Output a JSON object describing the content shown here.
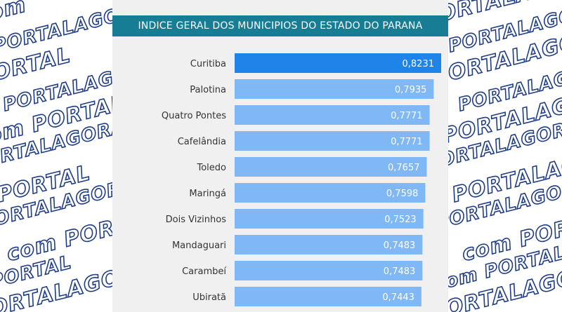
{
  "watermark": {
    "left_lines": [
      ".com",
      "PORTALAGORA.com",
      "PORTAL",
      "PORTALAGORA.com",
      "om PORTAL",
      "PORTALAGORA",
      "PORTAL",
      "PORTALAGORA",
      "com PORTAL",
      "PORTAL",
      "PORTALAGORA"
    ],
    "right_lines": [
      "PORTALAGORA.com",
      "PORTALAGOR",
      "PORTALAGORA.com",
      "PORTALAGORA",
      "PORTALAGORA",
      "PORTALAGORA",
      "PORTALAGORA.com",
      "PORTALAGORA",
      "com PORTALAGORA",
      "om PORTALAGOR",
      "PORTALAGORA"
    ],
    "stroke_color": "#1f3d86"
  },
  "chart_data": {
    "type": "bar",
    "orientation": "horizontal",
    "title": "INDICE GERAL DOS MUNICIPIOS DO ESTADO DO PARANA",
    "categories": [
      "Curitiba",
      "Palotina",
      "Quatro Pontes",
      "Cafelândia",
      "Toledo",
      "Maringá",
      "Dois Vizinhos",
      "Mandaguari",
      "Carambeí",
      "Ubiratã"
    ],
    "values": [
      0.8231,
      0.7935,
      0.7771,
      0.7771,
      0.7657,
      0.7598,
      0.7523,
      0.7483,
      0.7483,
      0.7443
    ],
    "value_labels": [
      "0,8231",
      "0,7935",
      "0,7771",
      "0,7771",
      "0,7657",
      "0,7598",
      "0,7523",
      "0,7483",
      "0,7483",
      "0,7443"
    ],
    "xlim": [
      0,
      0.8231
    ],
    "grid": false,
    "highlight_index": 0,
    "colors": {
      "highlight": "#1f84e8",
      "bar": "#7fb8f4",
      "title_bar": "#167d94",
      "panel": "#f0f0f0"
    }
  }
}
